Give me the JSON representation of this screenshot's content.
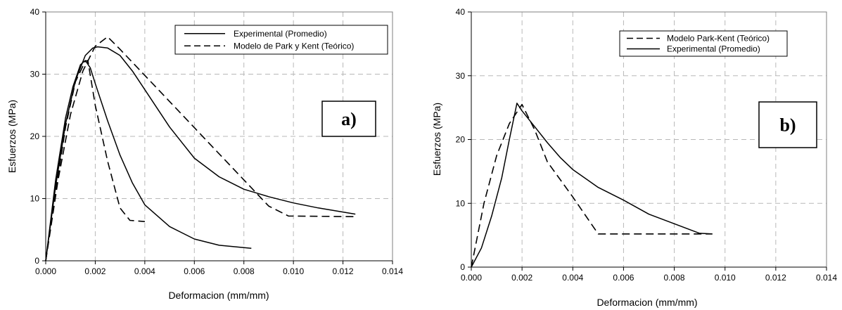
{
  "chart_data": [
    {
      "type": "line",
      "panel_label": "a)",
      "xlabel": "Deformacion (mm/mm)",
      "ylabel": "Esfuerzos (MPa)",
      "xlim": [
        0,
        0.014
      ],
      "ylim": [
        0,
        40
      ],
      "xticks": [
        "0.000",
        "0.002",
        "0.004",
        "0.006",
        "0.008",
        "0.010",
        "0.012",
        "0.014"
      ],
      "yticks": [
        "0",
        "10",
        "20",
        "30",
        "40"
      ],
      "grid": true,
      "legend_position": "top-right",
      "series": [
        {
          "name": "Experimental (Promedio)",
          "style": "solid",
          "legend": true,
          "points": [
            [
              0,
              0
            ],
            [
              0.0004,
              13
            ],
            [
              0.0008,
              23
            ],
            [
              0.0011,
              28
            ],
            [
              0.0014,
              31.5
            ],
            [
              0.0016,
              32.2
            ],
            [
              0.0018,
              31
            ],
            [
              0.002,
              28.5
            ],
            [
              0.0025,
              22.5
            ],
            [
              0.003,
              17
            ],
            [
              0.0035,
              12.5
            ],
            [
              0.004,
              9
            ],
            [
              0.005,
              5.5
            ],
            [
              0.006,
              3.5
            ],
            [
              0.007,
              2.5
            ],
            [
              0.0083,
              2
            ]
          ]
        },
        {
          "name": "Experimental (Promedio)",
          "style": "solid",
          "legend": false,
          "points": [
            [
              0,
              0
            ],
            [
              0.0004,
              12
            ],
            [
              0.0008,
              22
            ],
            [
              0.0012,
              29
            ],
            [
              0.0016,
              33
            ],
            [
              0.0019,
              34.2
            ],
            [
              0.0021,
              34.4
            ],
            [
              0.0025,
              34.2
            ],
            [
              0.003,
              33
            ],
            [
              0.0035,
              30.5
            ],
            [
              0.004,
              27.5
            ],
            [
              0.005,
              21.5
            ],
            [
              0.006,
              16.5
            ],
            [
              0.007,
              13.5
            ],
            [
              0.008,
              11.5
            ],
            [
              0.009,
              10.3
            ],
            [
              0.01,
              9.3
            ],
            [
              0.011,
              8.5
            ],
            [
              0.0125,
              7.5
            ]
          ]
        },
        {
          "name": "Modelo de Park y Kent (Teórico)",
          "style": "dashed",
          "legend": true,
          "points": [
            [
              0,
              0
            ],
            [
              0.0004,
              11
            ],
            [
              0.0008,
              21.5
            ],
            [
              0.0012,
              28.8
            ],
            [
              0.0016,
              32.1
            ],
            [
              0.0017,
              32.2
            ],
            [
              0.002,
              25
            ],
            [
              0.0025,
              16
            ],
            [
              0.003,
              8.5
            ],
            [
              0.0034,
              6.5
            ],
            [
              0.004,
              6.3
            ]
          ]
        },
        {
          "name": "Modelo de Park y Kent (Teórico)",
          "style": "dashed",
          "legend": false,
          "points": [
            [
              0,
              0
            ],
            [
              0.0005,
              13
            ],
            [
              0.001,
              23.5
            ],
            [
              0.0015,
              30.5
            ],
            [
              0.002,
              34.5
            ],
            [
              0.0025,
              36
            ],
            [
              0.003,
              34
            ],
            [
              0.004,
              29.8
            ],
            [
              0.005,
              25.6
            ],
            [
              0.006,
              21.4
            ],
            [
              0.007,
              17.2
            ],
            [
              0.008,
              13
            ],
            [
              0.009,
              8.8
            ],
            [
              0.0098,
              7.2
            ],
            [
              0.0125,
              7.1
            ]
          ]
        }
      ]
    },
    {
      "type": "line",
      "panel_label": "b)",
      "xlabel": "Deformacion (mm/mm)",
      "ylabel": "Esfuerzos (MPa)",
      "xlim": [
        0,
        0.014
      ],
      "ylim": [
        0,
        40
      ],
      "xticks": [
        "0.000",
        "0.002",
        "0.004",
        "0.006",
        "0.008",
        "0.010",
        "0.012",
        "0.014"
      ],
      "yticks": [
        "0",
        "10",
        "20",
        "30",
        "40"
      ],
      "grid": true,
      "legend_position": "top-right",
      "series": [
        {
          "name": "Modelo Park-Kent (Teórico)",
          "style": "dashed",
          "legend": true,
          "points": [
            [
              0,
              0
            ],
            [
              0.0005,
              10
            ],
            [
              0.001,
              17.5
            ],
            [
              0.0015,
              22.5
            ],
            [
              0.002,
              25.5
            ],
            [
              0.0025,
              21.5
            ],
            [
              0.003,
              16.5
            ],
            [
              0.004,
              11
            ],
            [
              0.005,
              5.2
            ],
            [
              0.006,
              5.2
            ],
            [
              0.007,
              5.2
            ],
            [
              0.008,
              5.2
            ],
            [
              0.009,
              5.2
            ],
            [
              0.0095,
              5.2
            ]
          ]
        },
        {
          "name": "Experimental (Promedio)",
          "style": "solid",
          "legend": true,
          "points": [
            [
              0,
              0
            ],
            [
              0.0004,
              3
            ],
            [
              0.0008,
              8
            ],
            [
              0.0012,
              14
            ],
            [
              0.0015,
              20
            ],
            [
              0.0018,
              25.7
            ],
            [
              0.002,
              24.5
            ],
            [
              0.0025,
              22
            ],
            [
              0.003,
              19.5
            ],
            [
              0.0035,
              17.2
            ],
            [
              0.004,
              15.3
            ],
            [
              0.005,
              12.5
            ],
            [
              0.006,
              10.5
            ],
            [
              0.007,
              8.3
            ],
            [
              0.008,
              6.8
            ],
            [
              0.009,
              5.3
            ],
            [
              0.0095,
              5.2
            ]
          ]
        }
      ]
    }
  ]
}
